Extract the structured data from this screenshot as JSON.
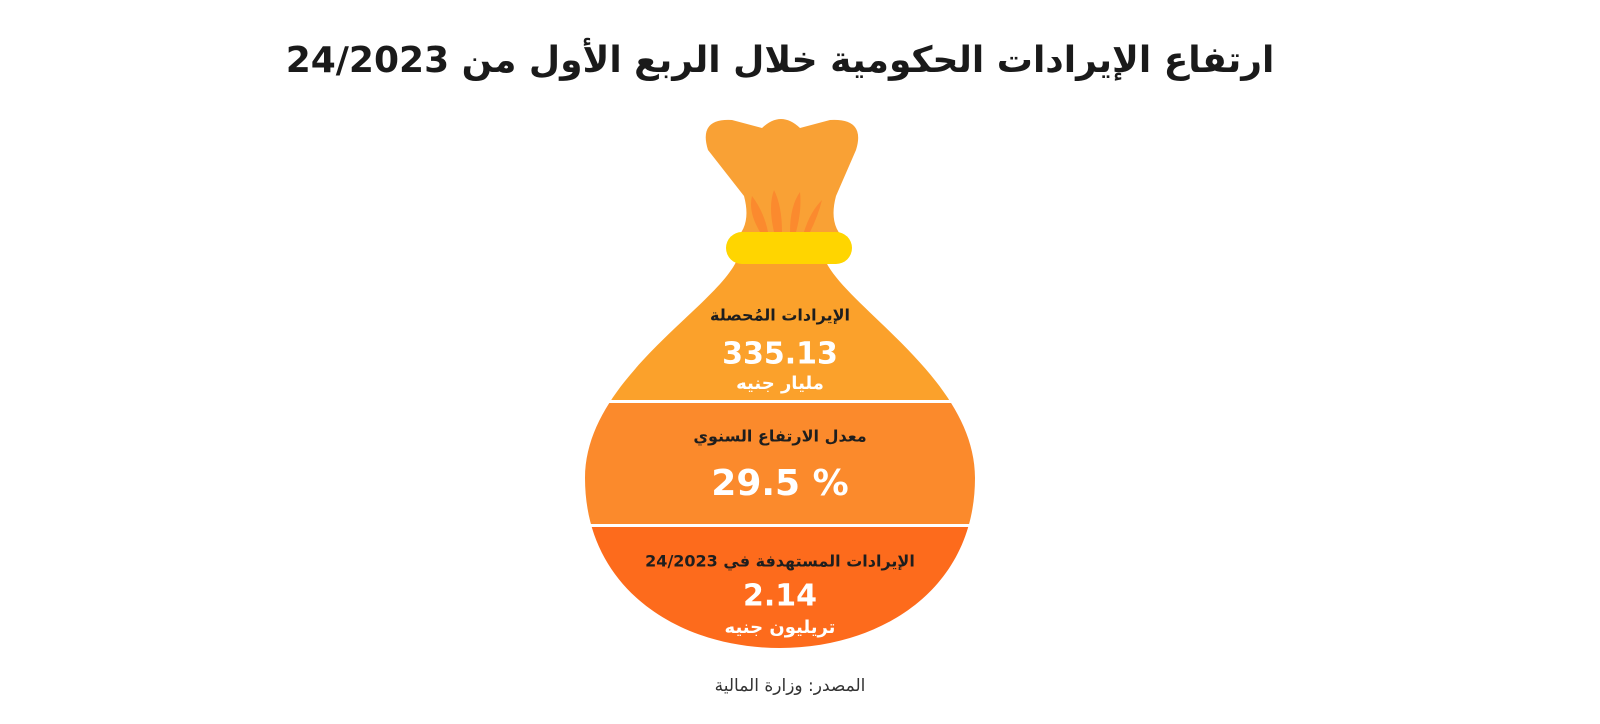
{
  "header": {
    "title": "ارتفاع الإيرادات الحكومية خلال الربع الأول من 24/2023"
  },
  "sections": [
    {
      "label": "الإيرادات المُحصلة",
      "value": "335.13",
      "unit": "مليار جنيه"
    },
    {
      "label": "معدل الارتفاع السنوي",
      "value": "29.5 %"
    },
    {
      "label": "الإيرادات المستهدفة في 24/2023",
      "value": "2.14",
      "unit": "تريليون جنيه"
    }
  ],
  "footer": {
    "source": "المصدر: وزارة المالية"
  }
}
